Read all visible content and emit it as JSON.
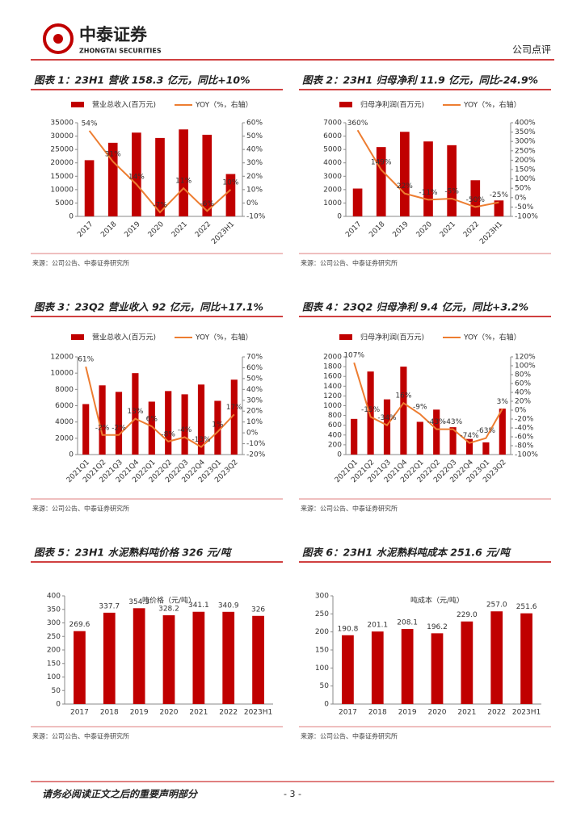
{
  "header": {
    "logo_text": "中泰证券",
    "logo_subtext": "ZHONGTAI SECURITIES",
    "report_type": "公司点评"
  },
  "chart_data": [
    {
      "type": "bar-line",
      "title": "图表 1：23H1 营收 158.3 亿元，同比+10%",
      "categories": [
        "2017",
        "2018",
        "2019",
        "2020",
        "2021",
        "2022",
        "2023H1"
      ],
      "series": [
        {
          "name": "营业总收入(百万元)",
          "color": "#c00000",
          "type": "bar",
          "values": [
            21000,
            27500,
            31300,
            29300,
            32500,
            30500,
            15830
          ]
        },
        {
          "name": "YOY（%，右轴）",
          "color": "#ed7d31",
          "type": "line",
          "axis": "y2",
          "values": [
            54,
            31,
            14,
            -7,
            11,
            -6,
            10
          ],
          "value_labels": [
            "54%",
            "31%",
            "14%",
            "-7%",
            "11%",
            "-6%",
            "10%"
          ]
        }
      ],
      "ylim": [
        0,
        35000
      ],
      "yticks": [
        0,
        5000,
        10000,
        15000,
        20000,
        25000,
        30000,
        35000
      ],
      "y2lim": [
        -10,
        60
      ],
      "y2ticks": [
        {
          "value": -10,
          "label": "-10%"
        },
        {
          "value": 0,
          "label": "0%"
        },
        {
          "value": 10,
          "label": "10%"
        },
        {
          "value": 20,
          "label": "20%"
        },
        {
          "value": 30,
          "label": "30%"
        },
        {
          "value": 40,
          "label": "40%"
        },
        {
          "value": 50,
          "label": "50%"
        },
        {
          "value": 60,
          "label": "60%"
        }
      ],
      "source": "来源：公司公告、中泰证券研究所"
    },
    {
      "type": "bar-line",
      "title": "图表 2：23H1 归母净利 11.9 亿元，同比-24.9%",
      "categories": [
        "2017",
        "2018",
        "2019",
        "2020",
        "2021",
        "2022",
        "2023H1"
      ],
      "series": [
        {
          "name": "归母净利润(百万元)",
          "color": "#c00000",
          "type": "bar",
          "values": [
            2080,
            5180,
            6320,
            5600,
            5320,
            2700,
            1190
          ]
        },
        {
          "name": "YOY（%，右轴）",
          "color": "#ed7d31",
          "type": "line",
          "axis": "y2",
          "values": [
            360,
            149,
            22,
            -11,
            -5,
            -50,
            -25
          ],
          "value_labels": [
            "360%",
            "149%",
            "22%",
            "-11%",
            "-5%",
            "-50%",
            "-25%"
          ]
        }
      ],
      "ylim": [
        0,
        7000
      ],
      "yticks": [
        0,
        1000,
        2000,
        3000,
        4000,
        5000,
        6000,
        7000
      ],
      "y2lim": [
        -100,
        400
      ],
      "y2ticks": [
        {
          "value": -100,
          "label": "-100%"
        },
        {
          "value": -50,
          "label": "-50%"
        },
        {
          "value": 0,
          "label": "0%"
        },
        {
          "value": 50,
          "label": "50%"
        },
        {
          "value": 100,
          "label": "100%"
        },
        {
          "value": 150,
          "label": "150%"
        },
        {
          "value": 200,
          "label": "200%"
        },
        {
          "value": 250,
          "label": "250%"
        },
        {
          "value": 300,
          "label": "300%"
        },
        {
          "value": 350,
          "label": "350%"
        },
        {
          "value": 400,
          "label": "400%"
        }
      ],
      "source": "来源：公司公告、中泰证券研究所"
    },
    {
      "type": "bar-line",
      "title": "图表 3：23Q2 营业收入 92 亿元，同比+17.1%",
      "categories": [
        "2021Q1",
        "2021Q2",
        "2021Q3",
        "2021Q4",
        "2022Q1",
        "2022Q2",
        "2022Q3",
        "2022Q4",
        "2023Q1",
        "2023Q2"
      ],
      "series": [
        {
          "name": "营业总收入(百万元)",
          "color": "#c00000",
          "type": "bar",
          "values": [
            6200,
            8500,
            7700,
            10000,
            6500,
            7800,
            7400,
            8600,
            6600,
            9200
          ]
        },
        {
          "name": "YOY（%，右轴）",
          "color": "#ed7d31",
          "type": "line",
          "axis": "y2",
          "values": [
            61,
            -2,
            -2,
            13,
            6,
            -8,
            -4,
            -13,
            1,
            17
          ],
          "value_labels": [
            "61%",
            "-2%",
            "-2%",
            "13%",
            "6%",
            "-8%",
            "-4%",
            "-13%",
            "1%",
            "17%"
          ]
        }
      ],
      "ylim": [
        0,
        12000
      ],
      "yticks": [
        0,
        2000,
        4000,
        6000,
        8000,
        10000,
        12000
      ],
      "y2lim": [
        -20,
        70
      ],
      "y2ticks": [
        {
          "value": -20,
          "label": "-20%"
        },
        {
          "value": -10,
          "label": "-10%"
        },
        {
          "value": 0,
          "label": "0%"
        },
        {
          "value": 10,
          "label": "10%"
        },
        {
          "value": 20,
          "label": "20%"
        },
        {
          "value": 30,
          "label": "30%"
        },
        {
          "value": 40,
          "label": "40%"
        },
        {
          "value": 50,
          "label": "50%"
        },
        {
          "value": 60,
          "label": "60%"
        },
        {
          "value": 70,
          "label": "70%"
        }
      ],
      "source": "来源：公司公告、中泰证券研究所"
    },
    {
      "type": "bar-line",
      "title": "图表 4：23Q2 归母净利 9.4 亿元，同比+3.2%",
      "categories": [
        "2021Q1",
        "2021Q2",
        "2021Q3",
        "2021Q4",
        "2022Q1",
        "2022Q2",
        "2022Q3",
        "2022Q4",
        "2023Q1",
        "2023Q2"
      ],
      "series": [
        {
          "name": "归母净利润(百万元)",
          "color": "#c00000",
          "type": "bar",
          "values": [
            730,
            1700,
            1130,
            1800,
            670,
            920,
            560,
            320,
            250,
            940
          ]
        },
        {
          "name": "YOY（%，右轴）",
          "color": "#ed7d31",
          "type": "line",
          "axis": "y2",
          "values": [
            107,
            -15,
            -34,
            16,
            -9,
            -43,
            -43,
            -74,
            -63,
            3
          ],
          "value_labels": [
            "107%",
            "-15%",
            "-34%",
            "16%",
            "-9%",
            "-43%",
            "-43%",
            "-74%",
            "-63%",
            "3%"
          ]
        }
      ],
      "ylim": [
        0,
        2000
      ],
      "yticks": [
        0,
        200,
        400,
        600,
        800,
        1000,
        1200,
        1400,
        1600,
        1800,
        2000
      ],
      "y2lim": [
        -100,
        120
      ],
      "y2ticks": [
        {
          "value": -100,
          "label": "-100%"
        },
        {
          "value": -80,
          "label": "-80%"
        },
        {
          "value": -60,
          "label": "-60%"
        },
        {
          "value": -40,
          "label": "-40%"
        },
        {
          "value": -20,
          "label": "-20%"
        },
        {
          "value": 0,
          "label": "0%"
        },
        {
          "value": 20,
          "label": "20%"
        },
        {
          "value": 40,
          "label": "40%"
        },
        {
          "value": 60,
          "label": "60%"
        },
        {
          "value": 80,
          "label": "80%"
        },
        {
          "value": 100,
          "label": "100%"
        },
        {
          "value": 120,
          "label": "120%"
        }
      ],
      "source": "来源：公司公告、中泰证券研究所"
    },
    {
      "type": "bar",
      "title": "图表 5：23H1 水泥熟料吨价格 326 元/吨",
      "subtitle": "吨价格（元/吨）",
      "categories": [
        "2017",
        "2018",
        "2019",
        "2020",
        "2021",
        "2022",
        "2023H1"
      ],
      "values": [
        269.6,
        337.7,
        354.3,
        328.2,
        341.1,
        340.9,
        326
      ],
      "color": "#c00000",
      "ylim": [
        0,
        400
      ],
      "yticks": [
        0,
        50,
        100,
        150,
        200,
        250,
        300,
        350,
        400
      ],
      "source": "来源：公司公告、中泰证券研究所"
    },
    {
      "type": "bar",
      "title": "图表 6：23H1 水泥熟料吨成本 251.6 元/吨",
      "subtitle": "吨成本（元/吨）",
      "categories": [
        "2017",
        "2018",
        "2019",
        "2020",
        "2021",
        "2022",
        "2023H1"
      ],
      "values": [
        190.8,
        201.1,
        208.1,
        196.2,
        229.0,
        257.0,
        251.6
      ],
      "value_labels": [
        "190.8",
        "201.1",
        "208.1",
        "196.2",
        "229.0",
        "257.0",
        "251.6"
      ],
      "color": "#c00000",
      "ylim": [
        0,
        300
      ],
      "yticks": [
        0,
        50,
        100,
        150,
        200,
        250,
        300
      ],
      "source": "来源：公司公告、中泰证券研究所"
    }
  ],
  "footer": {
    "disclaimer": "请务必阅读正文之后的重要声明部分",
    "page": "- 3 -"
  }
}
